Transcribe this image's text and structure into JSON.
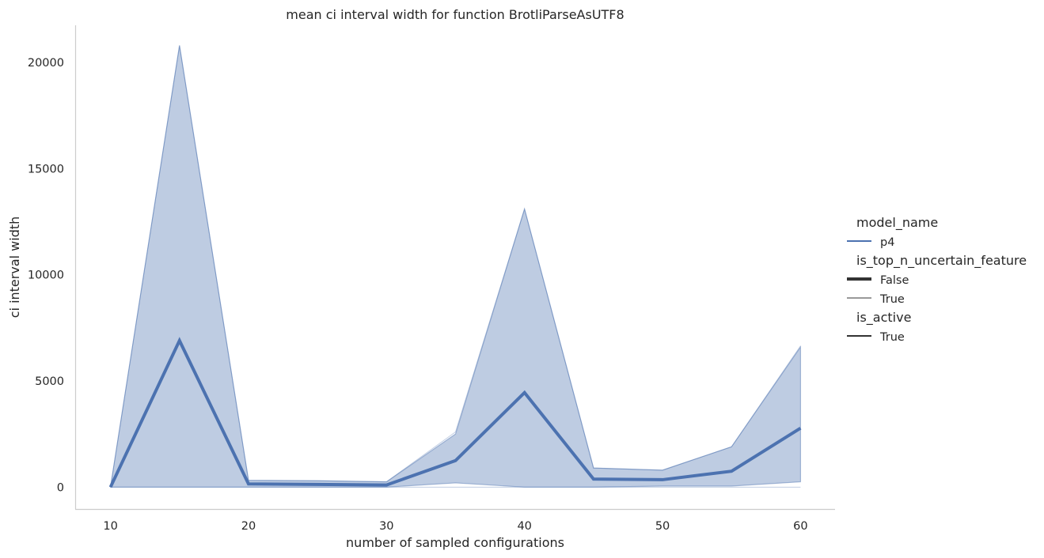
{
  "chart_data": {
    "type": "line",
    "title": "mean ci interval width for function BrotliParseAsUTF8",
    "xlabel": "number of sampled configurations",
    "ylabel": "ci interval width",
    "xlim": [
      7.5,
      62.5
    ],
    "ylim": [
      -1030,
      21750
    ],
    "xticks": [
      10,
      20,
      30,
      40,
      50,
      60
    ],
    "yticks": [
      0,
      5000,
      10000,
      15000,
      20000
    ],
    "grid": false,
    "legend_position": "right",
    "series": [
      {
        "color": "#4c72b0",
        "x": [
          10,
          15,
          20,
          25,
          30,
          35,
          40,
          45,
          50,
          55,
          60
        ],
        "values": [
          0,
          6900,
          150,
          130,
          100,
          1250,
          4450,
          380,
          350,
          750,
          2780
        ],
        "ci_lower": [
          0,
          0,
          0,
          0,
          0,
          200,
          0,
          0,
          50,
          50,
          250
        ],
        "ci_upper": [
          0,
          20800,
          320,
          300,
          250,
          2500,
          13100,
          900,
          800,
          1900,
          6600
        ],
        "ci_upper_thin": [
          0,
          20800,
          320,
          300,
          250,
          2600,
          13100,
          900,
          800,
          1900,
          6650
        ]
      }
    ],
    "legend": [
      {
        "kind": "title",
        "text": "model_name"
      },
      {
        "kind": "entry",
        "text": "p4",
        "color": "#4c72b0",
        "weight": "normal"
      },
      {
        "kind": "title",
        "text": "is_top_n_uncertain_feature"
      },
      {
        "kind": "entry",
        "text": "False",
        "color": "#333333",
        "weight": "thick"
      },
      {
        "kind": "entry",
        "text": "True",
        "color": "#333333",
        "weight": "thin"
      },
      {
        "kind": "title",
        "text": "is_active"
      },
      {
        "kind": "entry",
        "text": "True",
        "color": "#333333",
        "weight": "normal"
      }
    ]
  }
}
